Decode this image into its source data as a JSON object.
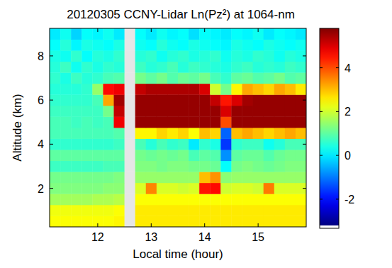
{
  "chart_data": {
    "type": "heatmap",
    "title": "20120305 CCNY-Lidar Ln(Pz²) at 1064-nm",
    "x_label": "Local time (hour)",
    "y_label": "Altitude (km)",
    "xlim": [
      11.1,
      15.9
    ],
    "ylim": [
      0.25,
      9.25
    ],
    "xticks": [
      12,
      13,
      14,
      15
    ],
    "yticks": [
      2,
      4,
      6,
      8
    ],
    "x_bins": [
      11.1,
      11.3,
      11.5,
      11.7,
      11.9,
      12.1,
      12.3,
      12.5,
      12.7,
      12.9,
      13.1,
      13.3,
      13.5,
      13.7,
      13.9,
      14.1,
      14.3,
      14.5,
      14.7,
      14.9,
      15.1,
      15.3,
      15.5,
      15.7,
      15.9
    ],
    "y_bins": [
      0.25,
      0.75,
      1.25,
      1.75,
      2.25,
      2.75,
      3.25,
      3.75,
      4.25,
      4.75,
      5.25,
      5.75,
      6.25,
      6.75,
      7.25,
      7.75,
      8.25,
      8.75,
      9.25
    ],
    "cells": [
      [
        2.4,
        2.4,
        2.4,
        2.4,
        2.4,
        2.4,
        2.5,
        null,
        2.6,
        2.6,
        2.6,
        2.6,
        2.6,
        2.6,
        2.6,
        2.6,
        2.6,
        2.6,
        2.6,
        2.6,
        2.6,
        2.6,
        2.6,
        2.6
      ],
      [
        2.3,
        2.3,
        2.3,
        2.3,
        2.3,
        2.3,
        2.4,
        null,
        2.6,
        2.6,
        2.6,
        2.6,
        2.6,
        2.6,
        2.6,
        2.6,
        2.6,
        2.6,
        2.6,
        2.6,
        2.6,
        2.6,
        2.6,
        2.6
      ],
      [
        1.6,
        1.6,
        1.6,
        1.6,
        1.7,
        1.7,
        1.8,
        null,
        2.4,
        2.4,
        2.4,
        2.4,
        2.4,
        2.4,
        2.4,
        2.4,
        2.4,
        2.4,
        2.4,
        2.4,
        2.4,
        2.4,
        2.4,
        2.4
      ],
      [
        1.3,
        1.3,
        1.3,
        1.3,
        1.3,
        1.4,
        1.4,
        null,
        2.1,
        3.5,
        2.1,
        2.1,
        2.0,
        2.1,
        4.5,
        4.6,
        2.0,
        2.1,
        2.1,
        2.0,
        3.6,
        2.1,
        2.1,
        2.1
      ],
      [
        1.2,
        1.2,
        1.2,
        1.2,
        1.2,
        1.2,
        1.3,
        null,
        1.5,
        1.5,
        1.5,
        1.5,
        1.5,
        1.5,
        3.0,
        3.4,
        1.4,
        1.5,
        1.5,
        1.5,
        1.5,
        1.5,
        1.5,
        1.5
      ],
      [
        0.7,
        0.7,
        0.7,
        0.7,
        0.7,
        0.8,
        0.8,
        null,
        1.3,
        1.3,
        1.2,
        1.3,
        1.3,
        1.2,
        1.2,
        1.1,
        0.2,
        1.2,
        1.3,
        1.2,
        1.1,
        1.2,
        1.3,
        1.3
      ],
      [
        1.0,
        1.0,
        1.0,
        1.0,
        1.0,
        1.0,
        1.0,
        null,
        1.2,
        1.1,
        1.2,
        1.1,
        1.2,
        0.8,
        1.0,
        0.9,
        -0.8,
        1.0,
        1.1,
        1.1,
        0.9,
        1.1,
        1.2,
        1.2
      ],
      [
        0.6,
        0.6,
        0.6,
        0.6,
        0.6,
        0.6,
        0.7,
        null,
        0.8,
        0.5,
        0.8,
        0.6,
        0.7,
        0.0,
        0.6,
        0.4,
        -1.6,
        0.6,
        0.7,
        0.7,
        0.3,
        0.5,
        0.8,
        0.8
      ],
      [
        0.8,
        0.8,
        0.8,
        0.8,
        0.8,
        0.8,
        0.9,
        null,
        2.5,
        2.5,
        2.8,
        2.6,
        2.8,
        2.4,
        3.0,
        2.8,
        -1.2,
        3.0,
        3.2,
        3.0,
        2.8,
        3.0,
        3.2,
        3.0
      ],
      [
        0.8,
        0.8,
        0.7,
        0.8,
        0.7,
        0.8,
        4.8,
        null,
        5.6,
        5.6,
        5.6,
        5.6,
        5.6,
        5.6,
        5.6,
        5.6,
        4.0,
        5.6,
        5.6,
        5.6,
        5.6,
        5.6,
        5.6,
        5.6
      ],
      [
        0.7,
        0.7,
        0.7,
        0.7,
        0.7,
        1.2,
        5.2,
        null,
        5.6,
        5.6,
        5.6,
        5.6,
        5.6,
        5.6,
        5.6,
        5.6,
        5.0,
        5.6,
        5.6,
        5.6,
        5.6,
        5.6,
        5.6,
        5.6
      ],
      [
        0.6,
        0.6,
        0.6,
        0.6,
        0.8,
        3.2,
        5.5,
        null,
        5.6,
        5.6,
        5.6,
        5.6,
        5.6,
        5.6,
        5.6,
        5.2,
        4.5,
        5.0,
        5.5,
        5.6,
        5.6,
        5.6,
        5.6,
        5.6
      ],
      [
        0.5,
        0.5,
        0.5,
        0.6,
        1.5,
        4.6,
        4.8,
        null,
        5.2,
        5.4,
        5.4,
        5.4,
        5.4,
        5.4,
        5.0,
        2.0,
        1.2,
        2.5,
        3.2,
        3.0,
        2.8,
        3.2,
        3.0,
        2.6
      ],
      [
        0.6,
        0.4,
        0.7,
        0.5,
        0.6,
        0.8,
        0.9,
        null,
        1.2,
        1.0,
        1.2,
        0.9,
        1.1,
        1.0,
        1.2,
        0.8,
        0.6,
        1.0,
        1.1,
        0.9,
        1.0,
        1.2,
        0.9,
        1.0
      ],
      [
        0.5,
        0.7,
        0.3,
        0.6,
        0.4,
        0.6,
        0.5,
        null,
        0.7,
        0.5,
        0.6,
        0.8,
        0.5,
        0.7,
        0.6,
        0.5,
        0.4,
        0.6,
        0.7,
        0.5,
        0.6,
        0.5,
        0.7,
        0.6
      ],
      [
        0.4,
        0.3,
        0.6,
        0.2,
        0.5,
        0.4,
        0.6,
        null,
        0.5,
        0.6,
        0.3,
        0.5,
        0.6,
        0.4,
        0.5,
        0.6,
        0.3,
        0.5,
        0.4,
        0.6,
        0.5,
        0.3,
        0.5,
        0.4
      ],
      [
        0.2,
        0.5,
        0.1,
        0.4,
        0.3,
        0.2,
        0.4,
        null,
        0.3,
        0.2,
        0.5,
        0.3,
        0.2,
        0.4,
        0.3,
        0.2,
        0.1,
        0.4,
        0.3,
        0.2,
        0.4,
        0.3,
        0.2,
        0.3
      ],
      [
        0.0,
        0.3,
        -0.2,
        0.2,
        0.1,
        0.3,
        0.0,
        null,
        0.2,
        0.0,
        0.3,
        0.1,
        0.2,
        -0.1,
        0.2,
        0.1,
        0.0,
        0.2,
        0.1,
        0.3,
        0.0,
        0.2,
        0.1,
        0.0
      ]
    ],
    "clim": [
      -3.2,
      5.8
    ],
    "cticks": [
      -2,
      0,
      2,
      4
    ]
  }
}
